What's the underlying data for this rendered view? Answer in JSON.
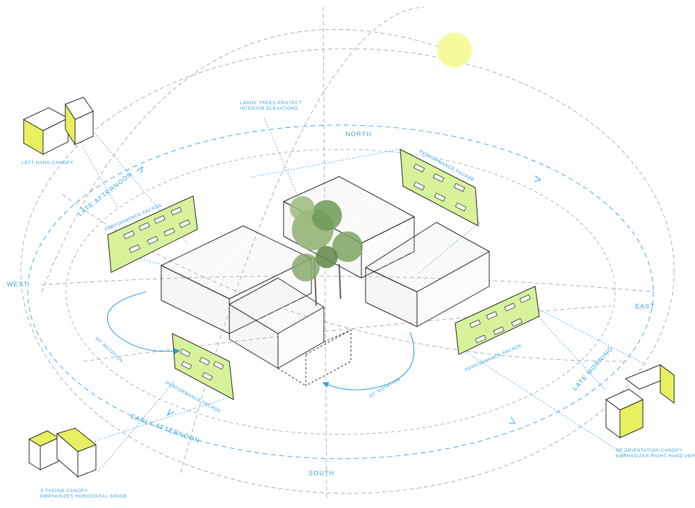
{
  "labels": {
    "north": "NORTH",
    "south": "SOUTH",
    "east": "EAST",
    "west": "WEST",
    "late_afternoon": "LATE AFTERNOON",
    "early_afternoon": "EARLY AFTERNOON",
    "late_morning": "LATE MORNING",
    "trees_line1": "LARGE TREES  PROTECT",
    "trees_line2": "INTERIOR ELEVATIONS",
    "left_canopy": "LEFT HAND CANOPY",
    "perf_facade_w": "PERFORMANCE FACADE",
    "perf_facade_n": "PERFORMANCE FACADE",
    "perf_facade_e": "PERFORMANCE FACADE",
    "perf_facade_s": "PERFORMANCE FACADE",
    "rotation_left": "90° ROTATION",
    "rotation_right": "90° ROTATION",
    "se_line1": "SE ORIENTATION CANOPY",
    "se_line2": "EMPHASIZES RIGHT HAND VERTICAL",
    "s_line1": "S FACING CANOPY",
    "s_line2": "EMPHASIZES HORIZONTAL SHADE"
  },
  "colors": {
    "accent_blue": "#2f9fe0",
    "facade_green": "#d7f29a",
    "sun_yellow": "#f4fb9a",
    "canopy_yellow": "#e8f060",
    "building_line": "#222222",
    "hatch": "#bdbdbd",
    "tree_green": "#6f9a55"
  },
  "icons": [
    "sun-icon",
    "tree-icon"
  ]
}
